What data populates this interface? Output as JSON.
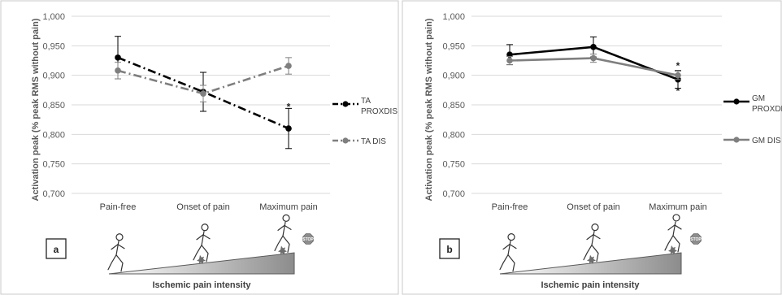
{
  "chart_data": [
    {
      "type": "line",
      "panel_label": "a",
      "ylabel": "Activation peak (% peak RMS without pain)",
      "xlabel": "Ischemic pain intensity",
      "categories": [
        "Pain-free",
        "Onset of pain",
        "Maximum pain"
      ],
      "yticks": [
        "1,000",
        "0,950",
        "0,900",
        "0,850",
        "0,800",
        "0,750",
        "0,700"
      ],
      "ylim": [
        0.7,
        1.0
      ],
      "grid": true,
      "legend_position": "right",
      "series": [
        {
          "name": "TA PROXDIS",
          "legend_lines": [
            "TA",
            "PROXDIS"
          ],
          "color": "#000000",
          "dash": "dashdot",
          "values": [
            0.93,
            0.872,
            0.81
          ],
          "errors": [
            0.036,
            0.033,
            0.034
          ]
        },
        {
          "name": "TA DIS",
          "legend_lines": [
            "TA DIS"
          ],
          "color": "#7f7f7f",
          "dash": "dashdot",
          "values": [
            0.908,
            0.869,
            0.916
          ],
          "errors": [
            0.014,
            0.014,
            0.014
          ]
        }
      ],
      "annotations": [
        {
          "category": 2,
          "value": 0.845,
          "text": "*"
        }
      ],
      "stop_sign": "STOP"
    },
    {
      "type": "line",
      "panel_label": "b",
      "ylabel": "Activation peak (% peak RMS without pain)",
      "xlabel": "Ischemic pain intensity",
      "categories": [
        "Pain-free",
        "Onset of pain",
        "Maximum pain"
      ],
      "yticks": [
        "1,000",
        "0,950",
        "0,900",
        "0,850",
        "0,800",
        "0,750",
        "0,700"
      ],
      "ylim": [
        0.7,
        1.0
      ],
      "grid": true,
      "legend_position": "right",
      "series": [
        {
          "name": "GM PROXDIS",
          "legend_lines": [
            "GM",
            "PROXDIS"
          ],
          "color": "#000000",
          "dash": "solid",
          "values": [
            0.935,
            0.948,
            0.893
          ],
          "errors": [
            0.017,
            0.017,
            0.015
          ]
        },
        {
          "name": "GM DIS",
          "legend_lines": [
            "GM DIS"
          ],
          "color": "#7f7f7f",
          "dash": "solid",
          "values": [
            0.925,
            0.929,
            0.9
          ],
          "errors": [
            0.007,
            0.007,
            0.007
          ]
        }
      ],
      "annotations": [
        {
          "category": 2,
          "value": 0.915,
          "text": "*"
        },
        {
          "category": 2,
          "value": 0.872,
          "text": "*"
        }
      ],
      "stop_sign": "STOP"
    }
  ]
}
